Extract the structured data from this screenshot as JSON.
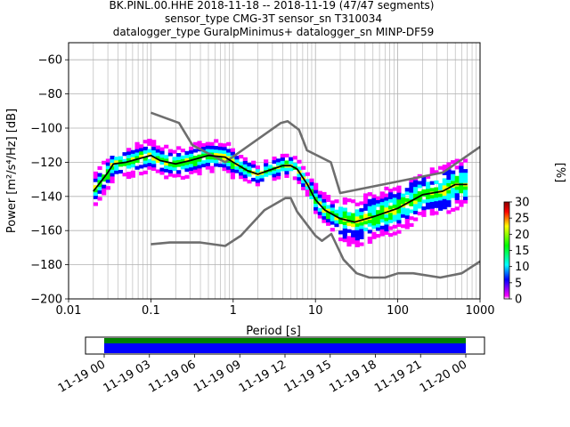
{
  "title": {
    "line1": "BK.PINL.00.HHE   2018-11-18 -- 2018-11-19  (47/47 segments)",
    "line2": "sensor_type CMG-3T sensor_sn T310034",
    "line3": "datalogger_type GuralpMinimus+ datalogger_sn MINP-DF59"
  },
  "chart_data": [
    {
      "type": "heatmap",
      "name": "probabilistic-psd",
      "xlabel": "Period [s]",
      "ylabel": "Power [m²/s⁴/Hz] [dB]",
      "xscale": "log",
      "xlim": [
        0.01,
        1000
      ],
      "ylim": [
        -200,
        -50
      ],
      "xticks": [
        {
          "v": 0.01,
          "label": "0.01"
        },
        {
          "v": 0.1,
          "label": "0.1"
        },
        {
          "v": 1,
          "label": "1"
        },
        {
          "v": 10,
          "label": "10"
        },
        {
          "v": 100,
          "label": "100"
        },
        {
          "v": 1000,
          "label": "1000"
        }
      ],
      "yticks": [
        -60,
        -80,
        -100,
        -120,
        -140,
        -160,
        -180,
        -200
      ],
      "grid": true,
      "colorbar": {
        "label": "[%]",
        "range": [
          0,
          30
        ],
        "ticks": [
          0,
          5,
          10,
          15,
          20,
          25,
          30
        ],
        "colormap": [
          "#ffffff",
          "#ff00ff",
          "#0000ff",
          "#00ffff",
          "#00ff00",
          "#ffff00",
          "#ff0000",
          "#8b0000"
        ]
      },
      "series": [
        {
          "name": "",
          "role": "high-noise-model",
          "color": "#6e6e6e",
          "points": [
            [
              0.1,
              -91
            ],
            [
              0.22,
              -97
            ],
            [
              0.32,
              -110
            ],
            [
              0.8,
              -120
            ],
            [
              3.8,
              -97
            ],
            [
              4.6,
              -96
            ],
            [
              6.3,
              -101
            ],
            [
              7.9,
              -113
            ],
            [
              15.4,
              -120
            ],
            [
              20,
              -138
            ],
            [
              354.8,
              -126
            ],
            [
              1000,
              -111
            ]
          ]
        },
        {
          "name": "",
          "role": "low-noise-model",
          "color": "#6e6e6e",
          "points": [
            [
              0.1,
              -168
            ],
            [
              0.17,
              -167
            ],
            [
              0.4,
              -167
            ],
            [
              0.8,
              -169
            ],
            [
              1.24,
              -163
            ],
            [
              2.4,
              -148
            ],
            [
              4.3,
              -141
            ],
            [
              5,
              -141
            ],
            [
              6,
              -149
            ],
            [
              10,
              -163
            ],
            [
              12,
              -166
            ],
            [
              15.6,
              -162
            ],
            [
              21.9,
              -177
            ],
            [
              31.6,
              -185
            ],
            [
              45,
              -187.5
            ],
            [
              70,
              -187.5
            ],
            [
              101,
              -185
            ],
            [
              154,
              -185
            ],
            [
              328,
              -187.5
            ],
            [
              600,
              -185
            ],
            [
              1000,
              -178
            ]
          ]
        },
        {
          "name": "",
          "role": "mean",
          "color": "#000000",
          "points": [
            [
              0.02,
              -137
            ],
            [
              0.025,
              -131
            ],
            [
              0.03,
              -126
            ],
            [
              0.035,
              -121
            ],
            [
              0.05,
              -120
            ],
            [
              0.07,
              -118
            ],
            [
              0.1,
              -116
            ],
            [
              0.13,
              -119
            ],
            [
              0.2,
              -121
            ],
            [
              0.3,
              -119
            ],
            [
              0.5,
              -116
            ],
            [
              0.8,
              -117
            ],
            [
              1,
              -120
            ],
            [
              1.5,
              -125
            ],
            [
              2,
              -127
            ],
            [
              3,
              -124
            ],
            [
              4,
              -122
            ],
            [
              5,
              -122
            ],
            [
              6,
              -124
            ],
            [
              8,
              -133
            ],
            [
              10,
              -142
            ],
            [
              13,
              -148
            ],
            [
              20,
              -153
            ],
            [
              30,
              -155
            ],
            [
              50,
              -152
            ],
            [
              100,
              -147
            ],
            [
              200,
              -139
            ],
            [
              350,
              -137
            ],
            [
              500,
              -133
            ],
            [
              700,
              -133
            ]
          ]
        }
      ]
    },
    {
      "type": "bar",
      "name": "data-coverage",
      "xlim": [
        "11-19 00",
        "11-20 00"
      ],
      "xticks": [
        "11-19 00",
        "11-19 03",
        "11-19 06",
        "11-19 09",
        "11-19 12",
        "11-19 15",
        "11-19 18",
        "11-19 21",
        "11-20 00"
      ],
      "bars": [
        {
          "role": "coverage",
          "color": "#0000ff",
          "start_hour": 0,
          "end_hour": 24
        },
        {
          "role": "segments-processed",
          "color": "#008000",
          "start_hour": 0,
          "end_hour": 24
        }
      ]
    }
  ]
}
